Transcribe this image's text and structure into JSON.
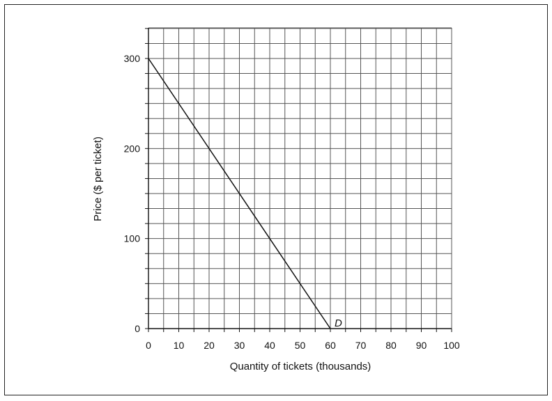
{
  "chart_data": {
    "type": "line",
    "xlabel": "Quantity of tickets (thousands)",
    "ylabel": "Price ($ per ticket)",
    "xlim": [
      0,
      100
    ],
    "ylim": [
      0,
      300
    ],
    "x_ticks": [
      0,
      10,
      20,
      30,
      40,
      50,
      60,
      70,
      80,
      90,
      100
    ],
    "y_ticks": [
      0,
      100,
      200,
      300
    ],
    "grid": true,
    "series": [
      {
        "name": "D",
        "x": [
          0,
          60
        ],
        "y": [
          300,
          0
        ]
      }
    ]
  }
}
